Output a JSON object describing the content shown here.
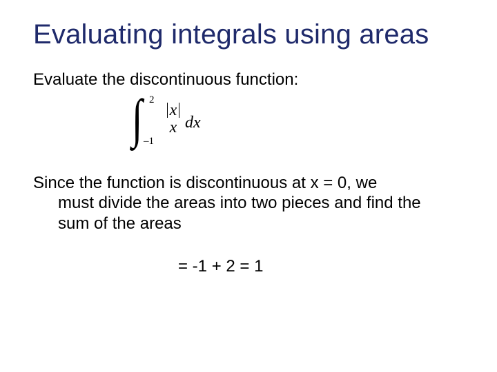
{
  "title": "Evaluating integrals using areas",
  "intro": "Evaluate the discontinuous function:",
  "integral": {
    "upper_limit": "2",
    "lower_limit": "–1",
    "numerator_var": "x",
    "denominator": "x",
    "differential": "dx"
  },
  "explain_line1": "Since the function is discontinuous at x = 0, we",
  "explain_line2": "must divide the areas into two pieces and find the",
  "explain_line3": "sum of the areas",
  "result": "= -1 + 2 = 1",
  "colors": {
    "title_color": "#1f2a6b",
    "body_color": "#000000",
    "background": "#ffffff"
  },
  "typography": {
    "title_fontsize": 40,
    "body_fontsize": 24,
    "math_family": "Times New Roman",
    "body_family": "Arial"
  }
}
